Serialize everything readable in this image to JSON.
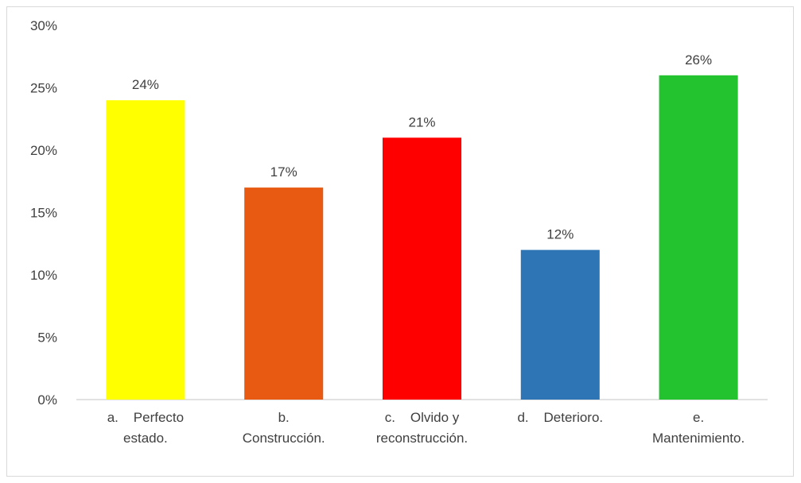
{
  "chart_data": {
    "type": "bar",
    "categories": [
      [
        "a.    Perfecto",
        "estado."
      ],
      [
        "b.",
        "Construcción."
      ],
      [
        "c.    Olvido y",
        "reconstrucción."
      ],
      [
        "d.    Deterioro."
      ],
      [
        "e.",
        "Mantenimiento."
      ]
    ],
    "values": [
      24,
      17,
      21,
      12,
      26
    ],
    "data_labels": [
      "24%",
      "17%",
      "21%",
      "12%",
      "26%"
    ],
    "colors": [
      "#ffff00",
      "#e85a12",
      "#ff0000",
      "#2e75b6",
      "#22c32e"
    ],
    "y_ticks": [
      "0%",
      "5%",
      "10%",
      "15%",
      "20%",
      "25%",
      "30%"
    ],
    "ylim": [
      0,
      30
    ],
    "grid": false,
    "legend": "none"
  }
}
